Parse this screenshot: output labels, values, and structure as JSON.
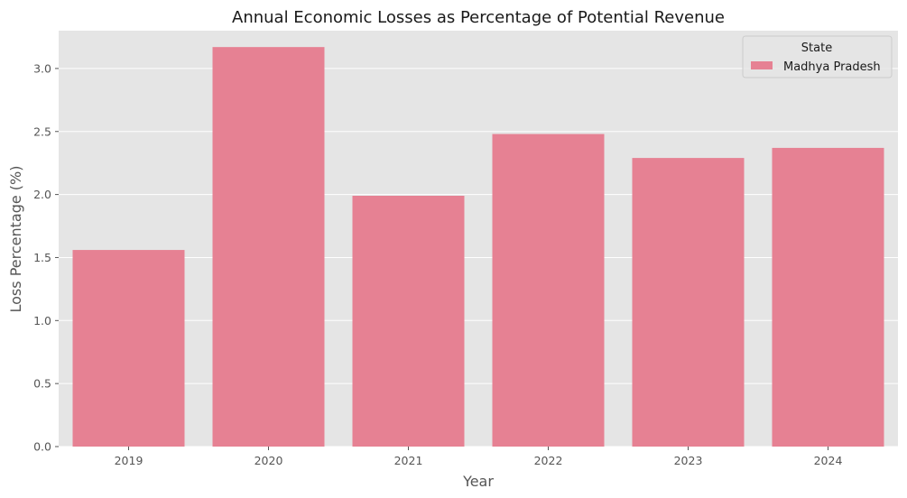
{
  "chart_data": {
    "type": "bar",
    "title": "Annual Economic Losses as Percentage of Potential Revenue",
    "xlabel": "Year",
    "ylabel": "Loss Percentage (%)",
    "categories": [
      "2019",
      "2020",
      "2021",
      "2022",
      "2023",
      "2024"
    ],
    "series": [
      {
        "name": "Madhya Pradesh",
        "values": [
          1.56,
          3.17,
          1.99,
          2.48,
          2.29,
          2.37
        ],
        "color": "#e68193"
      }
    ],
    "ylim": [
      0,
      3.3
    ],
    "yticks": [
      0.0,
      0.5,
      1.0,
      1.5,
      2.0,
      2.5,
      3.0
    ],
    "ytick_labels": [
      "0.0",
      "0.5",
      "1.0",
      "1.5",
      "2.0",
      "2.5",
      "3.0"
    ],
    "grid": true,
    "legend": {
      "title": "State",
      "placement": "top-right"
    },
    "colors": {
      "plot_background": "#e5e5e5",
      "grid": "#ffffff",
      "bar": "#e68193"
    }
  }
}
